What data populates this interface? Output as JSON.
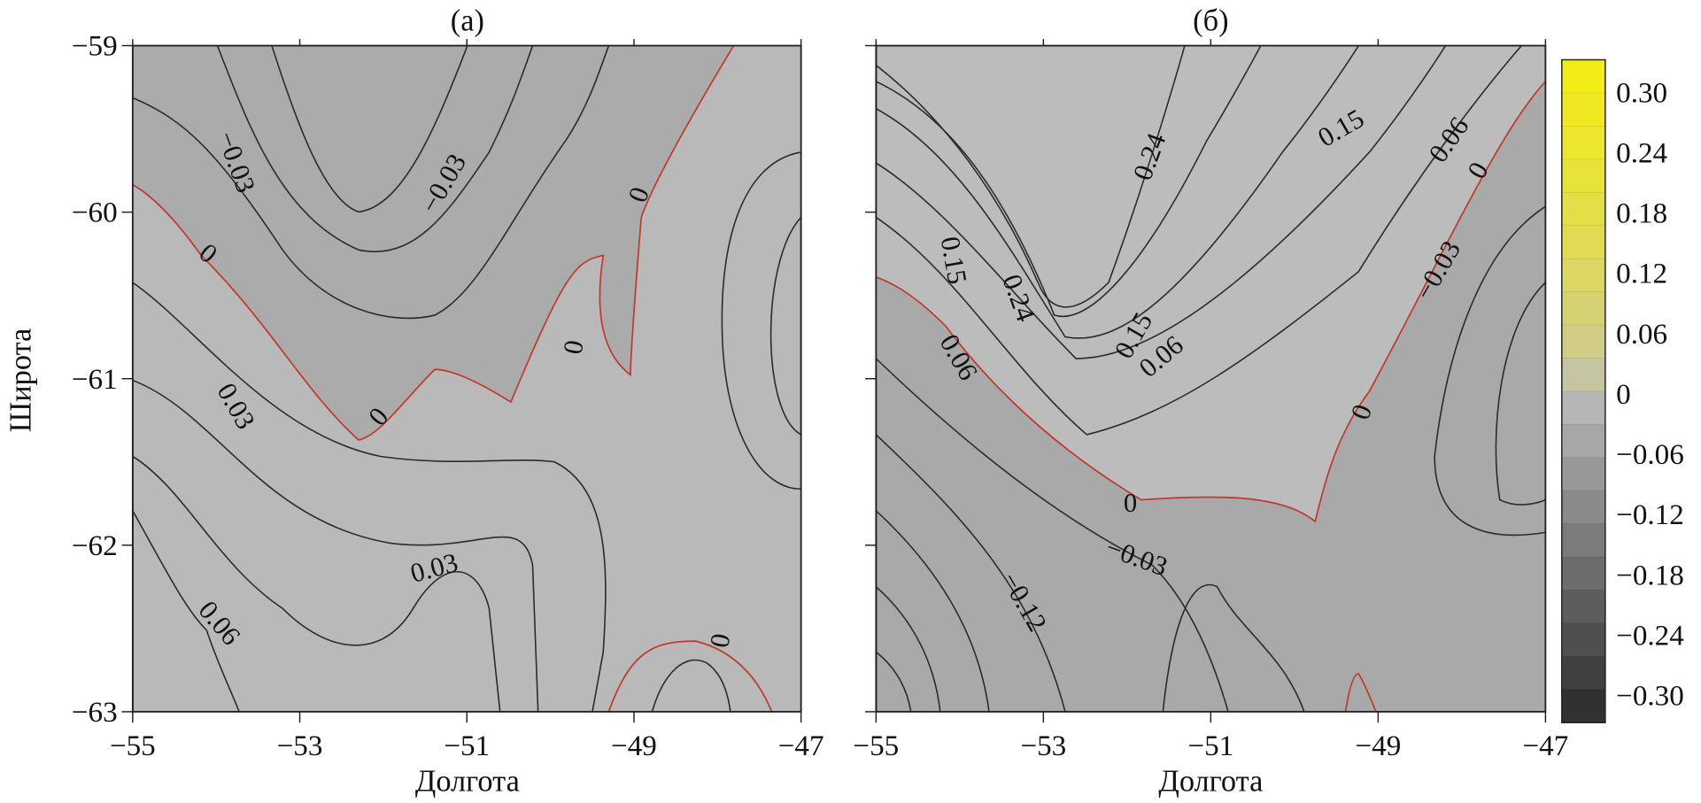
{
  "chart_data": [
    {
      "type": "heatmap",
      "subtype": "filled-contour",
      "title": "(а)",
      "xlabel": "Долгота",
      "ylabel": "Широта",
      "xlim": [
        -55,
        -47
      ],
      "ylim": [
        -63,
        -59
      ],
      "xticks": [
        "−55",
        "−53",
        "−51",
        "−49",
        "−47"
      ],
      "yticks": [
        "−59",
        "−60",
        "−61",
        "−62",
        "−63"
      ],
      "contour_interval": 0.03,
      "contour_labels": [
        "−0.03",
        "−0.03",
        "0",
        "0",
        "0",
        "0",
        "0.03",
        "0.03",
        "0.06",
        "0"
      ],
      "zero_contour_color": "#c0392b"
    },
    {
      "type": "heatmap",
      "subtype": "filled-contour",
      "title": "(б)",
      "xlabel": "Долгота",
      "xlim": [
        -55,
        -47
      ],
      "ylim": [
        -63,
        -59
      ],
      "xticks": [
        "−55",
        "−53",
        "−51",
        "−49",
        "−47"
      ],
      "contour_interval": 0.03,
      "contour_labels": [
        "0.24",
        "0.15",
        "0.06",
        "0",
        "−0.03",
        "0.15",
        "0.24",
        "0.06",
        "0.15",
        "0.06",
        "0",
        "0",
        "−0.03",
        "−0.12"
      ],
      "zero_contour_color": "#c0392b"
    }
  ],
  "colorbar": {
    "ticks": [
      "0.30",
      "0.24",
      "0.18",
      "0.12",
      "0.06",
      "0",
      "−0.06",
      "−0.12",
      "−0.18",
      "−0.24",
      "−0.30"
    ],
    "range": [
      -0.3,
      0.3
    ],
    "levels": 20,
    "color_max": "#f5ee12",
    "color_zero": "#bdbdbd",
    "color_min": "#2a2a2a"
  }
}
